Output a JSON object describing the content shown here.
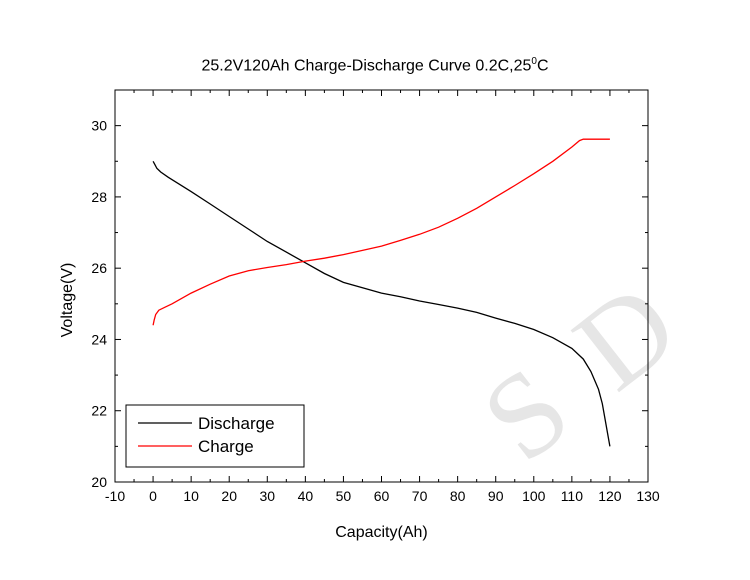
{
  "chart_data": {
    "type": "line",
    "title_main": "25.2V120Ah Charge-Discharge Curve  0.2C,25",
    "title_sup": "0",
    "title_tail": "C",
    "xlabel": "Capacity(Ah)",
    "ylabel": "Voltage(V)",
    "xlim": [
      -10,
      130
    ],
    "ylim": [
      20,
      31
    ],
    "x_ticks": [
      -10,
      0,
      10,
      20,
      30,
      40,
      50,
      60,
      70,
      80,
      90,
      100,
      110,
      120,
      130
    ],
    "y_ticks": [
      20,
      22,
      24,
      26,
      28,
      30
    ],
    "grid": false,
    "legend_position": "bottom-left",
    "series": [
      {
        "name": "Discharge",
        "color": "#000000",
        "points": [
          [
            0,
            29.0
          ],
          [
            0.5,
            28.9
          ],
          [
            1,
            28.8
          ],
          [
            2,
            28.7
          ],
          [
            4,
            28.55
          ],
          [
            7,
            28.35
          ],
          [
            10,
            28.15
          ],
          [
            15,
            27.8
          ],
          [
            20,
            27.45
          ],
          [
            25,
            27.1
          ],
          [
            30,
            26.75
          ],
          [
            35,
            26.45
          ],
          [
            40,
            26.15
          ],
          [
            45,
            25.85
          ],
          [
            50,
            25.6
          ],
          [
            55,
            25.45
          ],
          [
            60,
            25.3
          ],
          [
            65,
            25.2
          ],
          [
            70,
            25.08
          ],
          [
            75,
            24.98
          ],
          [
            80,
            24.88
          ],
          [
            85,
            24.76
          ],
          [
            90,
            24.6
          ],
          [
            95,
            24.45
          ],
          [
            100,
            24.28
          ],
          [
            105,
            24.05
          ],
          [
            110,
            23.75
          ],
          [
            113,
            23.45
          ],
          [
            115,
            23.1
          ],
          [
            117,
            22.6
          ],
          [
            118,
            22.2
          ],
          [
            119,
            21.6
          ],
          [
            119.5,
            21.3
          ],
          [
            120,
            21.0
          ]
        ]
      },
      {
        "name": "Charge",
        "color": "#ff0000",
        "points": [
          [
            0,
            24.4
          ],
          [
            0.3,
            24.55
          ],
          [
            0.7,
            24.7
          ],
          [
            1.5,
            24.82
          ],
          [
            3,
            24.9
          ],
          [
            5,
            25.0
          ],
          [
            10,
            25.3
          ],
          [
            15,
            25.55
          ],
          [
            20,
            25.78
          ],
          [
            25,
            25.93
          ],
          [
            30,
            26.02
          ],
          [
            35,
            26.1
          ],
          [
            40,
            26.2
          ],
          [
            45,
            26.28
          ],
          [
            50,
            26.38
          ],
          [
            55,
            26.5
          ],
          [
            60,
            26.62
          ],
          [
            65,
            26.78
          ],
          [
            70,
            26.95
          ],
          [
            75,
            27.15
          ],
          [
            80,
            27.4
          ],
          [
            85,
            27.68
          ],
          [
            90,
            28.0
          ],
          [
            95,
            28.32
          ],
          [
            100,
            28.65
          ],
          [
            105,
            29.0
          ],
          [
            110,
            29.4
          ],
          [
            112,
            29.58
          ],
          [
            113,
            29.62
          ],
          [
            120,
            29.62
          ]
        ]
      }
    ]
  },
  "watermark": "S D"
}
